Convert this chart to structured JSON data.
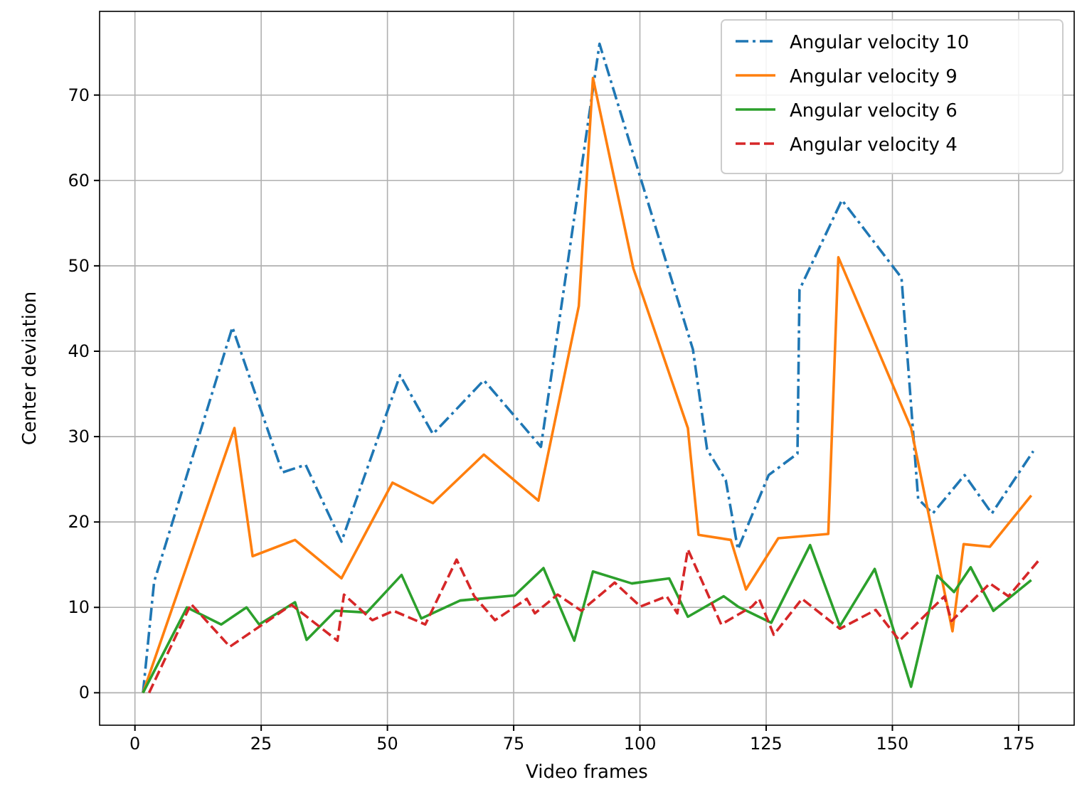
{
  "chart_data": {
    "type": "line",
    "xlabel": "Video frames",
    "ylabel": "Center deviation",
    "xlim": [
      -7,
      186
    ],
    "ylim": [
      -3.8,
      79.8
    ],
    "xticks": [
      0,
      25,
      50,
      75,
      100,
      125,
      150,
      175
    ],
    "yticks": [
      0,
      10,
      20,
      30,
      40,
      50,
      60,
      70
    ],
    "grid": true,
    "legend": "top right",
    "series": [
      {
        "name": "Angular velocity 10",
        "color": "#1f77b4",
        "line_style": "dashdot",
        "x": [
          1.6,
          3.8,
          19.3,
          29.2,
          33.8,
          40.9,
          52.5,
          59,
          69.1,
          80.4,
          92,
          110.5,
          113.3,
          117,
          119.4,
          125.5,
          131.2,
          131.6,
          140,
          151.8,
          155.1,
          158,
          164.3,
          169.7,
          177.9
        ],
        "values": [
          0,
          13,
          42.8,
          25.8,
          26.7,
          17.7,
          37.2,
          30.3,
          36.6,
          28.8,
          76,
          40.2,
          28.5,
          24.9,
          16.8,
          25.5,
          28,
          47.2,
          57.7,
          48.6,
          22.7,
          21,
          25.5,
          21,
          28.3
        ]
      },
      {
        "name": "Angular velocity 9",
        "color": "#ff7f0e",
        "line_style": "solid",
        "x": [
          1.6,
          19.7,
          23.3,
          31.7,
          40.9,
          51,
          59,
          69.1,
          79.9,
          87.9,
          90.7,
          98.7,
          109.5,
          111.6,
          118,
          121,
          127.4,
          137.3,
          139.3,
          153.7,
          161.9,
          164.1,
          169.3,
          177.5
        ],
        "values": [
          0,
          31,
          16,
          17.9,
          13.4,
          24.6,
          22.2,
          27.9,
          22.5,
          45.3,
          72,
          49.7,
          31,
          18.5,
          17.9,
          12.1,
          18.1,
          18.6,
          51,
          31,
          7.2,
          17.4,
          17.1,
          23.1
        ]
      },
      {
        "name": "Angular velocity 6",
        "color": "#2ca02c",
        "line_style": "solid",
        "x": [
          1.6,
          10.3,
          17.1,
          22.1,
          24.6,
          31.7,
          34,
          39.7,
          45.9,
          52.8,
          56.7,
          64.4,
          75.2,
          80.9,
          87,
          90.7,
          98.4,
          105.8,
          109.5,
          116.6,
          119.4,
          126,
          133.7,
          139.6,
          146.5,
          153.7,
          158.9,
          162.2,
          165.5,
          170,
          177.5
        ],
        "values": [
          0,
          10,
          8,
          10,
          8,
          10.6,
          6.2,
          9.6,
          9.4,
          13.8,
          8.7,
          10.8,
          11.4,
          14.6,
          6.1,
          14.2,
          12.8,
          13.4,
          8.9,
          11.3,
          10.1,
          8.2,
          17.3,
          7.8,
          14.5,
          0.7,
          13.7,
          11.8,
          14.7,
          9.6,
          13.2
        ]
      },
      {
        "name": "Angular velocity 4",
        "color": "#d62728",
        "line_style": "dashed",
        "x": [
          2.8,
          11.1,
          18.8,
          31,
          40.1,
          41.4,
          47,
          51.2,
          57.5,
          63.7,
          67.2,
          71.3,
          77.6,
          79.2,
          83.7,
          88.4,
          95,
          100.1,
          105.3,
          107.4,
          109.5,
          116.1,
          122.2,
          123.6,
          126.5,
          132.1,
          139.6,
          146.7,
          151.4,
          160.3,
          161.7,
          169.3,
          173,
          179.4
        ],
        "values": [
          0,
          10.4,
          5.4,
          10.3,
          6.1,
          11.5,
          8.5,
          9.6,
          8,
          15.6,
          11.3,
          8.5,
          11,
          9.3,
          11.5,
          9.6,
          12.9,
          10.1,
          11.3,
          9.3,
          16.8,
          8,
          10.1,
          11,
          6.8,
          11,
          7.5,
          9.7,
          6.1,
          11.3,
          8.4,
          12.8,
          11.3,
          15.8
        ]
      }
    ]
  }
}
